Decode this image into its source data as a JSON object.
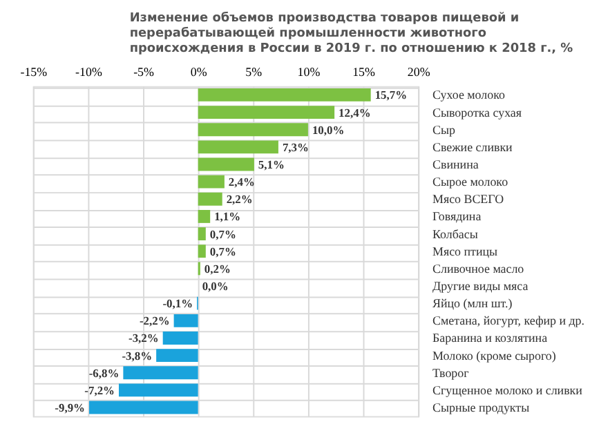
{
  "chart_data": {
    "type": "bar",
    "orientation": "horizontal",
    "title": "Изменение объемов производства  товаров пищевой и\nперерабатывающей промышленности  животного\nпроисхождения  в России в 2019 г. по отношению  к 2018 г., %",
    "categories": [
      "Сухое молоко",
      "Сыворотка сухая",
      "Сыр",
      "Свежие сливки",
      "Свинина",
      "Сырое молоко",
      "Мясо ВСЕГО",
      "Говядина",
      "Колбасы",
      "Мясо птицы",
      "Сливочное масло",
      "Другие виды мяса",
      "Яйцо (млн шт.)",
      "Сметана, йогурт, кефир и др.",
      "Баранина и козлятина",
      "Молоко (кроме сырого)",
      "Творог",
      "Сгущенное молоко и сливки",
      "Сырные продукты"
    ],
    "values": [
      15.7,
      12.4,
      10.0,
      7.3,
      5.1,
      2.4,
      2.2,
      1.1,
      0.7,
      0.7,
      0.2,
      0.0,
      -0.1,
      -2.2,
      -3.2,
      -3.8,
      -6.8,
      -7.2,
      -9.9
    ],
    "value_labels": [
      "15,7%",
      "12,4%",
      "10,0%",
      "7,3%",
      "5,1%",
      "2,4%",
      "2,2%",
      "1,1%",
      "0,7%",
      "0,7%",
      "0,2%",
      "0,0%",
      "-0,1%",
      "-2,2%",
      "-3,2%",
      "-3,8%",
      "-6,8%",
      "-7,2%",
      "-9,9%"
    ],
    "colors": [
      "#7dc142",
      "#7dc142",
      "#7dc142",
      "#7dc142",
      "#7dc142",
      "#7dc142",
      "#7dc142",
      "#7dc142",
      "#7dc142",
      "#7dc142",
      "#7dc142",
      "#7dc142",
      "#1aa3dc",
      "#1aa3dc",
      "#1aa3dc",
      "#1aa3dc",
      "#1aa3dc",
      "#1aa3dc",
      "#1aa3dc"
    ],
    "xlim": [
      -15,
      20
    ],
    "xticks": [
      {
        "value": -15,
        "label": "-15%"
      },
      {
        "value": -10,
        "label": "-10%"
      },
      {
        "value": -5,
        "label": "-5%"
      },
      {
        "value": 0,
        "label": "0%"
      },
      {
        "value": 5,
        "label": "5%"
      },
      {
        "value": 10,
        "label": "10%"
      },
      {
        "value": 15,
        "label": "15%"
      },
      {
        "value": 20,
        "label": "20%"
      }
    ],
    "grid": true
  }
}
